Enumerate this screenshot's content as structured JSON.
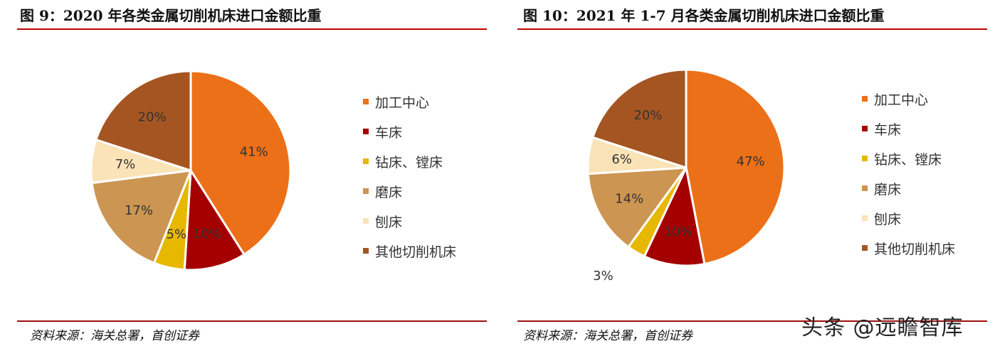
{
  "watermark": "头条 @远瞻智库",
  "charts": [
    {
      "title": "图 9：2020 年各类金属切削机床进口金额比重",
      "source": "资料来源：海关总署，首创证券"
    },
    {
      "title": "图 10：2021 年 1-7 月各类金属切削机床进口金额比重",
      "source": "资料来源：海关总署，首创证券"
    }
  ],
  "chart_data": [
    {
      "type": "pie",
      "title": "图 9：2020 年各类金属切削机床进口金额比重",
      "legend_position": "right",
      "categories": [
        "加工中心",
        "车床",
        "钻床、镗床",
        "磨床",
        "刨床",
        "其他切削机床"
      ],
      "values": [
        41,
        10,
        5,
        17,
        7,
        20
      ],
      "labels": [
        "41%",
        "10%",
        "5%",
        "17%",
        "7%",
        "20%"
      ],
      "colors": [
        "#ec7018",
        "#a50000",
        "#e7b800",
        "#cc9552",
        "#fbe3b8",
        "#a55522"
      ]
    },
    {
      "type": "pie",
      "title": "图 10：2021 年 1-7 月各类金属切削机床进口金额比重",
      "legend_position": "right",
      "categories": [
        "加工中心",
        "车床",
        "钻床、镗床",
        "磨床",
        "刨床",
        "其他切削机床"
      ],
      "values": [
        47,
        10,
        3,
        14,
        6,
        20
      ],
      "labels": [
        "47%",
        "10%",
        "3%",
        "14%",
        "6%",
        "20%"
      ],
      "colors": [
        "#ec7018",
        "#a50000",
        "#e7b800",
        "#cc9552",
        "#fbe3b8",
        "#a55522"
      ]
    }
  ]
}
